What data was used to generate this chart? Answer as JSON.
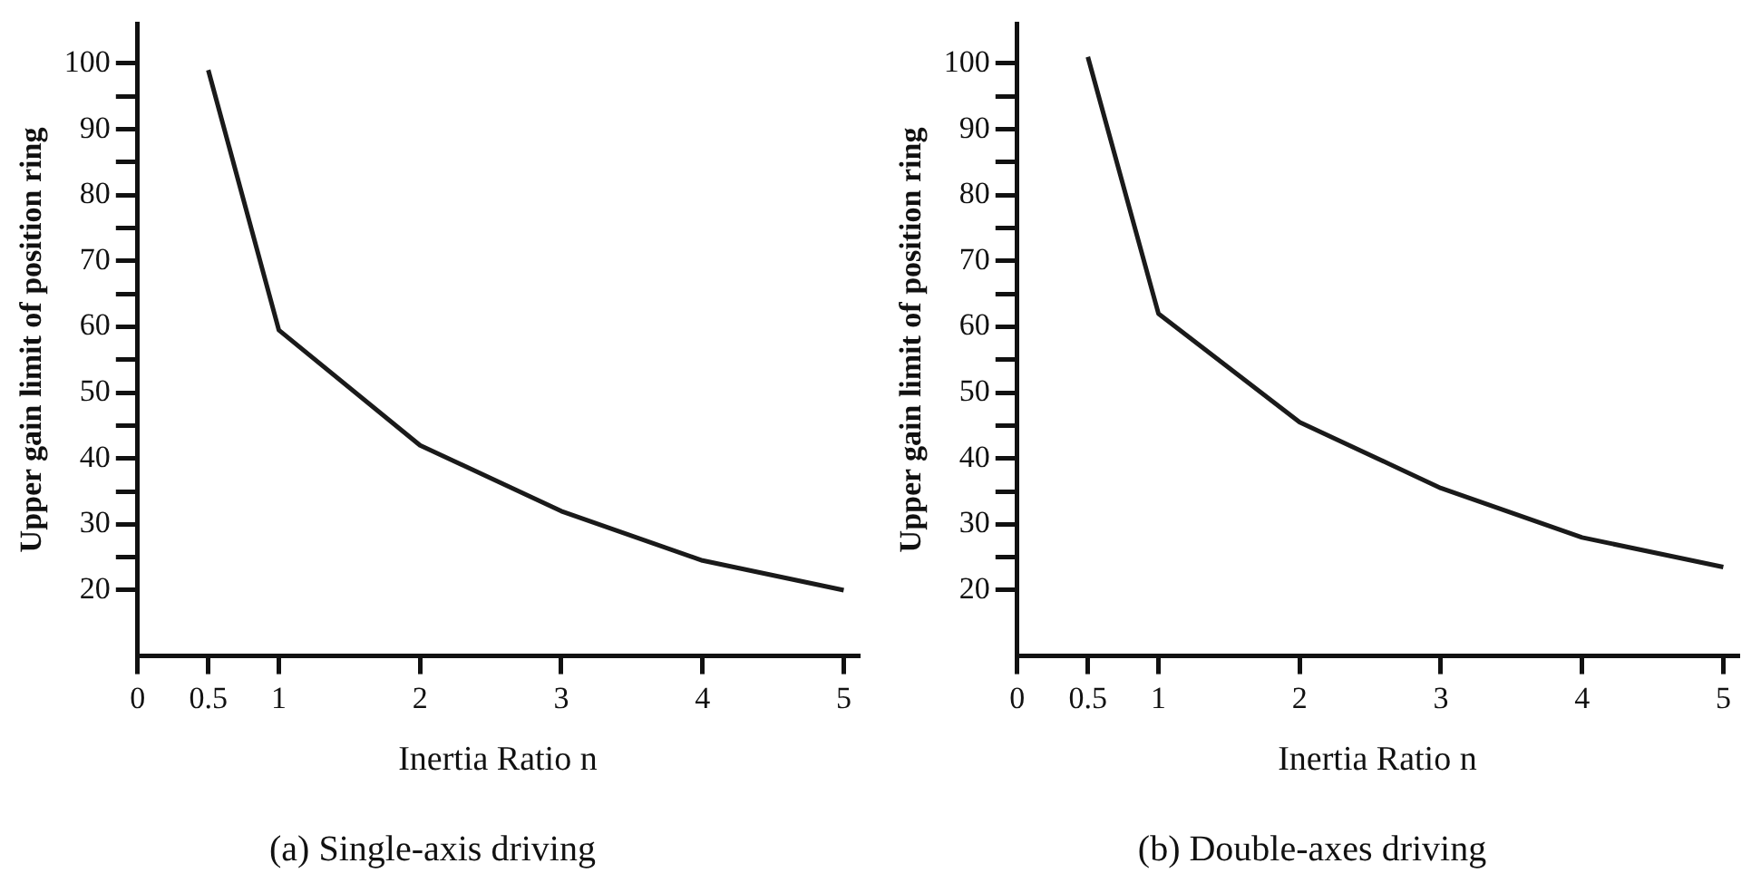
{
  "chart_data": [
    {
      "type": "line",
      "title": "(a) Single-axis driving",
      "xlabel": "Inertia Ratio n",
      "ylabel": "Upper gain limit of position ring",
      "x": [
        0.5,
        1,
        2,
        3,
        4,
        5
      ],
      "values": [
        99,
        59.5,
        42,
        32,
        24.5,
        20
      ],
      "color": "#1a1a1a",
      "xlim": [
        0,
        5.1
      ],
      "ylim": [
        10,
        106
      ],
      "xticks": [
        0,
        0.5,
        1,
        2,
        3,
        4,
        5
      ],
      "yticks": [
        20,
        {
          "value": 25,
          "label": null
        },
        30,
        {
          "value": 35,
          "label": null
        },
        40,
        {
          "value": 45,
          "label": null
        },
        50,
        {
          "value": 55,
          "label": null
        },
        60,
        {
          "value": 65,
          "label": null
        },
        70,
        {
          "value": 75,
          "label": null
        },
        80,
        {
          "value": 85,
          "label": null
        },
        90,
        {
          "value": 95,
          "label": null
        },
        100
      ]
    },
    {
      "type": "line",
      "title": "(b) Double-axes driving",
      "xlabel": "Inertia Ratio n",
      "ylabel": "Upper gain limit of position ring",
      "x": [
        0.5,
        1,
        2,
        3,
        4,
        5
      ],
      "values": [
        101,
        62,
        45.5,
        35.5,
        28,
        23.5
      ],
      "color": "#1a1a1a",
      "xlim": [
        0,
        5.1
      ],
      "ylim": [
        10,
        106
      ],
      "xticks": [
        0,
        0.5,
        1,
        2,
        3,
        4,
        5
      ],
      "yticks": [
        20,
        {
          "value": 25,
          "label": null
        },
        30,
        {
          "value": 35,
          "label": null
        },
        40,
        {
          "value": 45,
          "label": null
        },
        50,
        {
          "value": 55,
          "label": null
        },
        60,
        {
          "value": 65,
          "label": null
        },
        70,
        {
          "value": 75,
          "label": null
        },
        80,
        {
          "value": 85,
          "label": null
        },
        90,
        {
          "value": 95,
          "label": null
        },
        100
      ]
    }
  ]
}
